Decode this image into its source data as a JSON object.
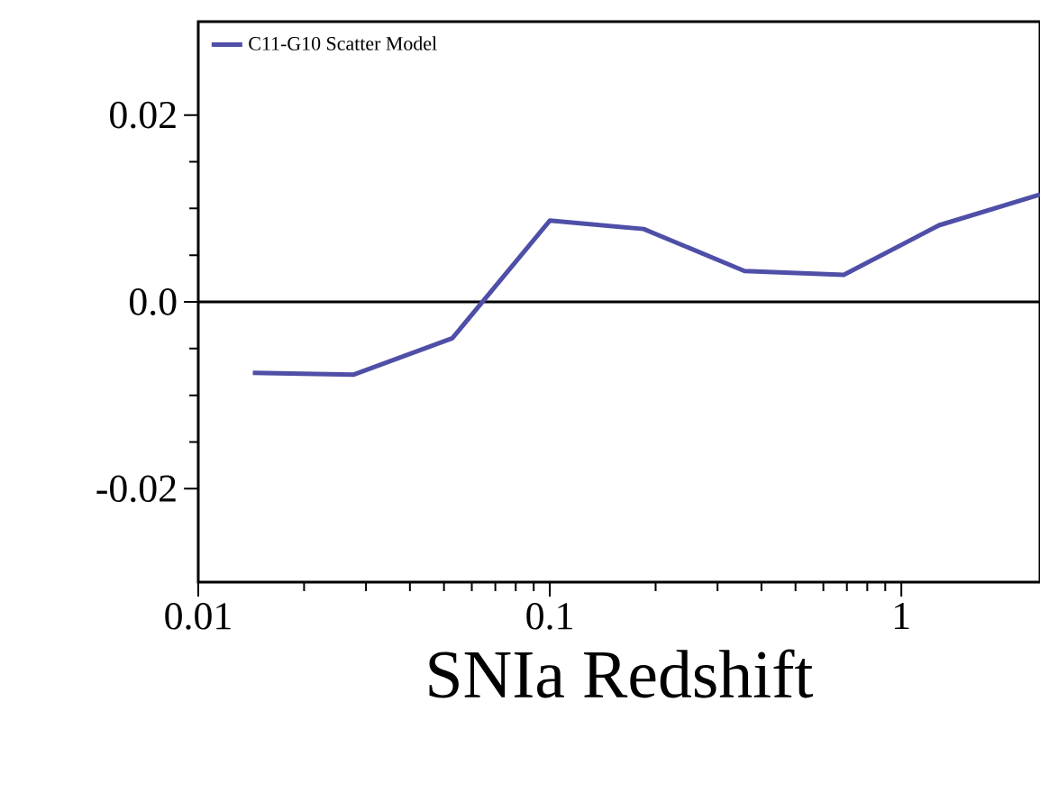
{
  "chart_data": {
    "type": "line",
    "xlabel": "SNIa Redshift",
    "x": [
      0.0143,
      0.0276,
      0.0528,
      0.1,
      0.185,
      0.358,
      0.686,
      1.28,
      2.48
    ],
    "series": [
      {
        "name": "C11-G10 Scatter Model",
        "color": "#4f4fa8",
        "values": [
          -0.0076,
          -0.0078,
          -0.0039,
          0.0087,
          0.0078,
          0.0033,
          0.0029,
          0.0082,
          0.0115
        ]
      }
    ],
    "log": "x",
    "xlim": [
      0.01,
      2.48
    ],
    "ylim": [
      -0.03,
      0.03
    ],
    "xticks": [
      0.01,
      0.1,
      1
    ],
    "yticks": [
      {
        "value": -0.02,
        "label": "-0.02"
      },
      {
        "value": 0,
        "label": "0.0"
      },
      {
        "value": 0.02,
        "label": "0.02"
      }
    ],
    "ref_lines": [
      {
        "axis": "y",
        "value": 0,
        "color": "#000000"
      }
    ],
    "legend": "top left",
    "marker": "none",
    "line_style": "solid",
    "grid": false
  }
}
